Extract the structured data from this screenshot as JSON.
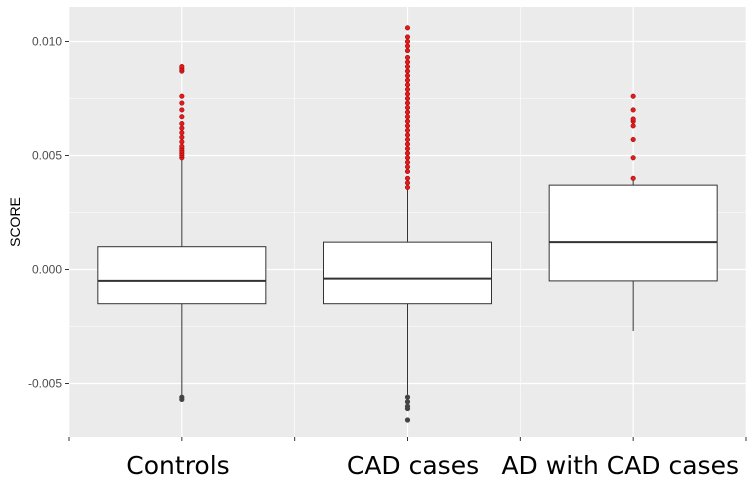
{
  "chart_data": {
    "type": "boxplot",
    "title": "",
    "xlabel": "",
    "ylabel": "SCORE",
    "categories": [
      "Controls",
      "CAD cases",
      "AD with CAD cases"
    ],
    "ylim": [
      -0.0075,
      0.0115
    ],
    "y_ticks": [
      -0.005,
      0.0,
      0.005,
      0.01
    ],
    "y_tick_labels": [
      "-0.005",
      "0.000",
      "0.005",
      "0.010"
    ],
    "grid": true,
    "boxes": [
      {
        "category": "Controls",
        "q1": -0.0015,
        "median": -0.0005,
        "q3": 0.001,
        "whisker_low": -0.0055,
        "whisker_high": 0.0049,
        "outliers_high": [
          0.0049,
          0.005,
          0.0051,
          0.0052,
          0.0053,
          0.0054,
          0.0056,
          0.0058,
          0.006,
          0.0062,
          0.0064,
          0.0067,
          0.007,
          0.0073,
          0.0076,
          0.0087,
          0.0088,
          0.0089
        ],
        "outliers_low": [
          -0.0056,
          -0.0057
        ]
      },
      {
        "category": "CAD cases",
        "q1": -0.0015,
        "median": -0.0004,
        "q3": 0.0012,
        "whisker_low": -0.0055,
        "whisker_high": 0.0035,
        "outliers_high": [
          0.0036,
          0.0038,
          0.004,
          0.0043,
          0.0045,
          0.0047,
          0.0049,
          0.0051,
          0.0053,
          0.0055,
          0.0057,
          0.0059,
          0.0061,
          0.0063,
          0.0065,
          0.0067,
          0.0069,
          0.0071,
          0.0073,
          0.0075,
          0.0077,
          0.0079,
          0.0081,
          0.0083,
          0.0085,
          0.0087,
          0.0089,
          0.0091,
          0.0093,
          0.0096,
          0.0098,
          0.01,
          0.0102,
          0.0106
        ],
        "outliers_low": [
          -0.0056,
          -0.0058,
          -0.006,
          -0.0061,
          -0.0066
        ]
      },
      {
        "category": "AD with CAD cases",
        "q1": -0.0005,
        "median": 0.0012,
        "q3": 0.0037,
        "whisker_low": -0.0027,
        "whisker_high": 0.0039,
        "outliers_high": [
          0.004,
          0.0049,
          0.0057,
          0.0063,
          0.0065,
          0.0066,
          0.007,
          0.0076
        ],
        "outliers_low": []
      }
    ],
    "colors": {
      "panel_bg": "#ebebeb",
      "grid": "#ffffff",
      "box_fill": "#ffffff",
      "box_line": "#333333",
      "outlier_high": "#e41a1c",
      "outlier_low": "#444444",
      "tick": "#333333"
    }
  }
}
